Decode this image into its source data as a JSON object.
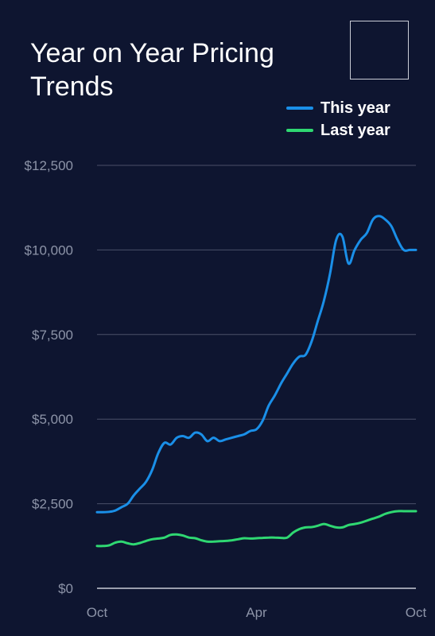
{
  "chart_data": {
    "type": "line",
    "title": "Year on Year Pricing Trends",
    "xlabel": "",
    "ylabel": "",
    "x_ticks": [
      "Oct",
      "Apr",
      "Oct"
    ],
    "y_ticks": [
      "$0",
      "$2,500",
      "$5,000",
      "$7,500",
      "$10,000",
      "$12,500"
    ],
    "ylim": [
      0,
      12500
    ],
    "xlim": [
      0,
      52
    ],
    "x_tick_positions": [
      0,
      26,
      52
    ],
    "y_tick_values": [
      0,
      2500,
      5000,
      7500,
      10000,
      12500
    ],
    "grid": true,
    "legend_position": "top-right",
    "series": [
      {
        "name": "This year",
        "color": "#1a8fe8",
        "x": [
          0,
          1,
          2,
          3,
          4,
          5,
          6,
          7,
          8,
          9,
          10,
          11,
          12,
          13,
          14,
          15,
          16,
          17,
          18,
          19,
          20,
          21,
          22,
          23,
          24,
          25,
          26,
          27,
          28,
          29,
          30,
          31,
          32,
          33,
          34,
          35,
          36,
          37,
          38,
          39,
          40,
          41,
          42,
          43,
          44,
          45,
          46,
          47,
          48,
          49,
          50,
          51,
          52
        ],
        "values": [
          2250,
          2250,
          2260,
          2300,
          2400,
          2500,
          2750,
          2950,
          3150,
          3500,
          4000,
          4300,
          4250,
          4450,
          4500,
          4450,
          4600,
          4550,
          4350,
          4450,
          4350,
          4400,
          4450,
          4500,
          4550,
          4650,
          4700,
          4950,
          5400,
          5700,
          6050,
          6350,
          6650,
          6850,
          6900,
          7300,
          7900,
          8500,
          9300,
          10300,
          10400,
          9600,
          10000,
          10300,
          10500,
          10900,
          11000,
          10900,
          10700,
          10300,
          10000,
          10000,
          10000
        ]
      },
      {
        "name": "Last year",
        "color": "#2fd872",
        "x": [
          0,
          1,
          2,
          3,
          4,
          5,
          6,
          7,
          8,
          9,
          10,
          11,
          12,
          13,
          14,
          15,
          16,
          17,
          18,
          19,
          20,
          21,
          22,
          23,
          24,
          25,
          26,
          27,
          28,
          29,
          30,
          31,
          32,
          33,
          34,
          35,
          36,
          37,
          38,
          39,
          40,
          41,
          42,
          43,
          44,
          45,
          46,
          47,
          48,
          49,
          50,
          51,
          52
        ],
        "values": [
          1250,
          1250,
          1270,
          1350,
          1380,
          1330,
          1300,
          1340,
          1400,
          1450,
          1470,
          1500,
          1580,
          1590,
          1560,
          1500,
          1480,
          1420,
          1380,
          1380,
          1390,
          1400,
          1420,
          1450,
          1480,
          1470,
          1480,
          1490,
          1500,
          1500,
          1490,
          1500,
          1650,
          1750,
          1800,
          1810,
          1850,
          1900,
          1850,
          1800,
          1800,
          1870,
          1900,
          1940,
          2000,
          2060,
          2120,
          2200,
          2250,
          2280,
          2280,
          2280,
          2280
        ]
      }
    ]
  }
}
